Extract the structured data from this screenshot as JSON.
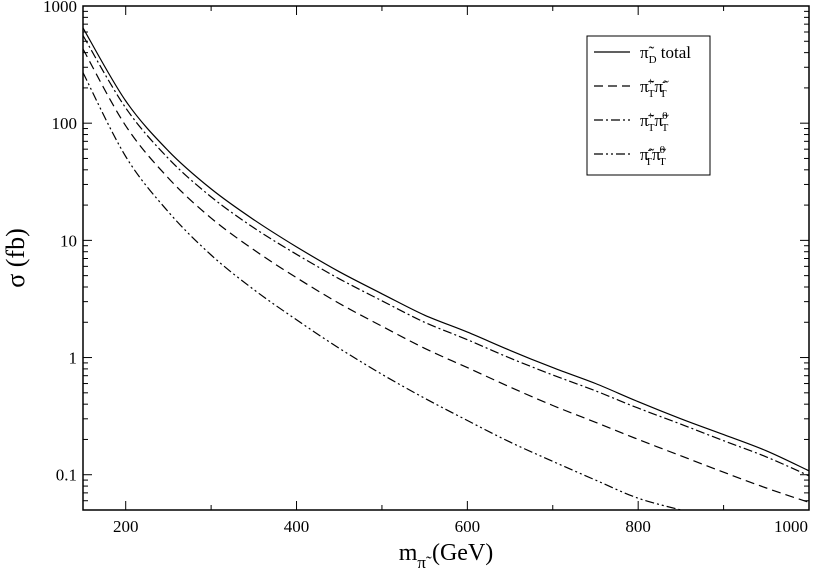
{
  "chart_data": {
    "type": "line",
    "title": "",
    "xlabel": {
      "base": "m",
      "sub": "π̃",
      "rest": " (GeV)"
    },
    "ylabel": "σ (fb)",
    "xlim": [
      150,
      1000
    ],
    "ylim": [
      0.05,
      1000
    ],
    "yscale": "log",
    "grid": false,
    "legend_position": "top-right",
    "x_ticks": [
      "200",
      "400",
      "600",
      "800",
      "1000"
    ],
    "y_ticks": [
      "0.1",
      "1",
      "10",
      "100",
      "1000"
    ],
    "x": [
      150,
      200,
      250,
      300,
      350,
      400,
      450,
      500,
      550,
      600,
      650,
      700,
      750,
      800,
      850,
      900,
      950,
      1000
    ],
    "series": [
      {
        "name_parts": {
          "base": "π̃",
          "sub": "D",
          "tail": " total"
        },
        "style": "solid",
        "values": [
          650,
          155,
          58,
          27.5,
          15,
          8.8,
          5.4,
          3.5,
          2.3,
          1.65,
          1.15,
          0.82,
          0.6,
          0.42,
          0.3,
          0.22,
          0.16,
          0.108
        ]
      },
      {
        "name_parts": {
          "a": "π̃",
          "a_sup": "+",
          "a_sub": "T",
          "b": "π̃",
          "b_sup": "-",
          "b_sub": "T"
        },
        "style": "dashed",
        "values": [
          430,
          95,
          34,
          15.5,
          8.3,
          4.8,
          2.9,
          1.85,
          1.2,
          0.82,
          0.56,
          0.39,
          0.28,
          0.2,
          0.145,
          0.105,
          0.077,
          0.058
        ]
      },
      {
        "name_parts": {
          "a": "π̃",
          "a_sup": "+",
          "a_sub": "T",
          "b": "π̃",
          "b_sup": "0",
          "b_sub": "T"
        },
        "style": "dashdot",
        "values": [
          560,
          135,
          50,
          23.5,
          12.8,
          7.6,
          4.7,
          3.05,
          2.0,
          1.42,
          0.99,
          0.71,
          0.52,
          0.37,
          0.27,
          0.195,
          0.142,
          0.098
        ]
      },
      {
        "name_parts": {
          "a": "π̃",
          "a_sup": "-",
          "a_sub": "T",
          "b": "π̃",
          "b_sup": "0",
          "b_sub": "T"
        },
        "style": "dashdotdot",
        "values": [
          270,
          52,
          17.5,
          7.5,
          3.8,
          2.1,
          1.2,
          0.72,
          0.45,
          0.29,
          0.19,
          0.13,
          0.09,
          0.063,
          0.05,
          0.05,
          0.05,
          0.05
        ]
      }
    ]
  }
}
